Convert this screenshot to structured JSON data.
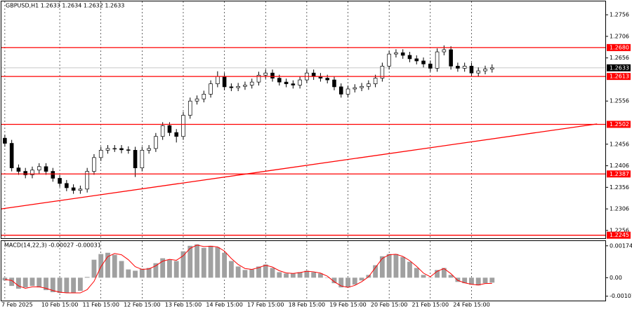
{
  "chart_data": [
    {
      "type": "candlestick",
      "title": "GBPUSD,H1  1.2633 1.2634 1.2632 1.2633",
      "x": [
        0,
        1,
        2,
        3,
        4,
        5,
        6,
        7,
        8,
        9,
        10,
        11,
        12,
        13,
        14,
        15,
        16,
        17,
        18,
        19,
        20,
        21,
        22,
        23,
        24,
        25,
        26,
        27,
        28,
        29,
        30,
        31,
        32,
        33,
        34,
        35,
        36,
        37,
        38,
        39,
        40,
        41,
        42,
        43,
        44,
        45,
        46,
        47,
        48,
        49,
        50,
        51,
        52,
        53,
        54,
        55,
        56,
        57,
        58,
        59,
        60,
        61,
        62,
        63,
        64,
        65,
        66,
        67,
        68,
        69,
        70,
        71
      ],
      "open": [
        1.247,
        1.2458,
        1.2401,
        1.2393,
        1.2385,
        1.2396,
        1.2404,
        1.2393,
        1.2377,
        1.2365,
        1.2355,
        1.2349,
        1.2352,
        1.2393,
        1.2425,
        1.2442,
        1.2446,
        1.2446,
        1.2443,
        1.2442,
        1.2401,
        1.2442,
        1.2446,
        1.2474,
        1.2499,
        1.2483,
        1.2474,
        1.2523,
        1.2556,
        1.2561,
        1.2572,
        1.2596,
        1.2613,
        1.2589,
        1.2587,
        1.259,
        1.2593,
        1.26,
        1.2616,
        1.2621,
        1.2609,
        1.26,
        1.2596,
        1.2593,
        1.2605,
        1.2621,
        1.2613,
        1.2609,
        1.2605,
        1.2589,
        1.2572,
        1.2584,
        1.2587,
        1.259,
        1.2596,
        1.2609,
        1.2637,
        1.2665,
        1.2668,
        1.2662,
        1.2654,
        1.2649,
        1.2642,
        1.2632,
        1.267,
        1.2675,
        1.2637,
        1.2632,
        1.2637,
        1.2621,
        1.2626,
        1.263
      ],
      "high": [
        1.2478,
        1.2466,
        1.2409,
        1.2401,
        1.2404,
        1.2412,
        1.2412,
        1.2401,
        1.2385,
        1.2373,
        1.2363,
        1.236,
        1.2401,
        1.2433,
        1.245,
        1.2454,
        1.2454,
        1.2454,
        1.2451,
        1.245,
        1.245,
        1.2454,
        1.2482,
        1.2507,
        1.2507,
        1.2491,
        1.2531,
        1.2564,
        1.2569,
        1.258,
        1.2604,
        1.2625,
        1.2621,
        1.2597,
        1.2598,
        1.2601,
        1.2608,
        1.2624,
        1.2629,
        1.2629,
        1.2617,
        1.2608,
        1.2604,
        1.2613,
        1.2629,
        1.2629,
        1.2621,
        1.2617,
        1.2613,
        1.2597,
        1.2592,
        1.2595,
        1.2598,
        1.2604,
        1.2617,
        1.2645,
        1.2673,
        1.2676,
        1.2676,
        1.267,
        1.2662,
        1.2657,
        1.265,
        1.2678,
        1.2685,
        1.2683,
        1.2645,
        1.2645,
        1.2645,
        1.2634,
        1.2638,
        1.2641
      ],
      "low": [
        1.245,
        1.2393,
        1.2385,
        1.2377,
        1.2377,
        1.2388,
        1.2385,
        1.2369,
        1.2357,
        1.2347,
        1.2341,
        1.2341,
        1.2344,
        1.2385,
        1.2417,
        1.2434,
        1.2438,
        1.2435,
        1.2434,
        1.238,
        1.2393,
        1.2434,
        1.2438,
        1.2466,
        1.2475,
        1.246,
        1.2466,
        1.2515,
        1.2548,
        1.2553,
        1.2564,
        1.2588,
        1.2581,
        1.2579,
        1.2579,
        1.2582,
        1.2585,
        1.2592,
        1.2608,
        1.2601,
        1.2592,
        1.2588,
        1.2585,
        1.2585,
        1.2597,
        1.2605,
        1.2601,
        1.2597,
        1.2581,
        1.2564,
        1.2564,
        1.2576,
        1.2579,
        1.2582,
        1.2588,
        1.2601,
        1.2629,
        1.2657,
        1.2654,
        1.2646,
        1.2641,
        1.2634,
        1.2624,
        1.2624,
        1.2662,
        1.2629,
        1.2624,
        1.2624,
        1.2613,
        1.2613,
        1.2618,
        1.2622
      ],
      "close": [
        1.2458,
        1.2401,
        1.2393,
        1.2385,
        1.2396,
        1.2404,
        1.2393,
        1.2377,
        1.2365,
        1.2355,
        1.2349,
        1.2352,
        1.2393,
        1.2425,
        1.2442,
        1.2446,
        1.2446,
        1.2443,
        1.2442,
        1.2401,
        1.2442,
        1.2446,
        1.2474,
        1.2499,
        1.2483,
        1.2474,
        1.2523,
        1.2556,
        1.2561,
        1.2572,
        1.2596,
        1.2613,
        1.2589,
        1.2587,
        1.259,
        1.2593,
        1.26,
        1.2616,
        1.2621,
        1.2609,
        1.26,
        1.2596,
        1.2593,
        1.2605,
        1.2621,
        1.2613,
        1.2609,
        1.2605,
        1.2589,
        1.2572,
        1.2584,
        1.2587,
        1.259,
        1.2596,
        1.2609,
        1.2637,
        1.2665,
        1.2668,
        1.2662,
        1.2654,
        1.2649,
        1.2642,
        1.2632,
        1.267,
        1.2675,
        1.2637,
        1.2632,
        1.2637,
        1.2621,
        1.2626,
        1.263,
        1.2633
      ],
      "up_color": "#ffffff",
      "down_color": "#000000",
      "wick_color": "#000000",
      "xlim": [
        -0.5,
        87.5
      ],
      "xticks": [
        {
          "value": 0,
          "label": "7 Feb 2025"
        },
        {
          "value": 8,
          "label": "10 Feb 15:00"
        },
        {
          "value": 14,
          "label": "11 Feb 15:00"
        },
        {
          "value": 20,
          "label": "12 Feb 15:00"
        },
        {
          "value": 26,
          "label": "13 Feb 15:00"
        },
        {
          "value": 32,
          "label": "14 Feb 15:00"
        },
        {
          "value": 38,
          "label": "17 Feb 15:00"
        },
        {
          "value": 44,
          "label": "18 Feb 15:00"
        },
        {
          "value": 50,
          "label": "19 Feb 15:00"
        },
        {
          "value": 56,
          "label": "20 Feb 15:00"
        },
        {
          "value": 62,
          "label": "21 Feb 15:00"
        },
        {
          "value": 68,
          "label": "24 Feb 15:00"
        }
      ],
      "grid_x": true,
      "ylim": [
        1.2238,
        1.2787
      ],
      "yticks": [
        1.2756,
        1.2706,
        1.2656,
        1.2556,
        1.2456,
        1.2406,
        1.2356,
        1.2306,
        1.2256
      ],
      "levels": [
        {
          "value": 1.268,
          "label": "1.2680"
        },
        {
          "value": 1.2613,
          "label": "1.2613"
        },
        {
          "value": 1.2502,
          "label": "1.2502"
        },
        {
          "value": 1.2387,
          "label": "1.2387"
        },
        {
          "value": 1.2245,
          "label": "1.2245"
        }
      ],
      "level_color": "#ff0000",
      "current_price": {
        "value": 1.2633,
        "label": "1.2633"
      },
      "trendline": {
        "x": [
          -0.5,
          86.3
        ],
        "y": [
          1.2306,
          1.2503
        ],
        "color": "#ff0000"
      }
    },
    {
      "type": "macd",
      "title": "MACD(14,22,3) -0.00027 -0.00031",
      "histogram": {
        "color": "#a0a0a0",
        "values": [
          -0.00015,
          -0.00045,
          -0.0006,
          -0.00053,
          -0.00045,
          -0.00053,
          -0.00068,
          -0.00079,
          -0.00083,
          -0.00083,
          -0.00083,
          -0.00072,
          4e-05,
          0.00098,
          0.00129,
          0.00136,
          0.00125,
          0.00091,
          0.00045,
          0.00038,
          0.00049,
          0.00053,
          0.00079,
          0.00106,
          0.00098,
          0.00091,
          0.00144,
          0.00174,
          0.00182,
          0.00163,
          0.00174,
          0.00166,
          0.00136,
          0.00091,
          0.00061,
          0.00042,
          0.00045,
          0.00061,
          0.00072,
          0.00053,
          0.0003,
          0.00023,
          0.00023,
          0.0003,
          0.00038,
          0.0003,
          0.00023,
          0.0,
          -0.0003,
          -0.00053,
          -0.00053,
          -0.00038,
          -0.00015,
          0.00015,
          0.00068,
          0.00117,
          0.00129,
          0.00129,
          0.00113,
          0.00087,
          0.00053,
          0.00015,
          0.0,
          0.00042,
          0.00053,
          0.00015,
          -0.00023,
          -0.0003,
          -0.00038,
          -0.00042,
          -0.0003,
          -0.00027
        ]
      },
      "signal": {
        "color": "#ff0000",
        "values": [
          -0.0001,
          -0.00015,
          -0.00045,
          -0.00058,
          -0.0005,
          -0.0005,
          -0.00058,
          -0.0007,
          -0.00079,
          -0.00083,
          -0.00083,
          -0.00083,
          -0.00065,
          -0.0002,
          0.0006,
          0.00115,
          0.00132,
          0.00125,
          0.00098,
          0.0006,
          0.00045,
          0.00048,
          0.00065,
          0.0009,
          0.001,
          0.00095,
          0.0012,
          0.0016,
          0.00178,
          0.0017,
          0.00172,
          0.00168,
          0.00145,
          0.00105,
          0.00072,
          0.0005,
          0.00045,
          0.00055,
          0.00068,
          0.00058,
          0.00038,
          0.00026,
          0.00023,
          0.00028,
          0.00035,
          0.00032,
          0.00025,
          8e-05,
          -0.00022,
          -0.00045,
          -0.00053,
          -0.00042,
          -0.00022,
          5e-05,
          0.00055,
          0.00105,
          0.00125,
          0.00128,
          0.00116,
          0.00093,
          0.00062,
          0.00025,
          5e-05,
          0.00035,
          0.0005,
          0.00022,
          -0.00015,
          -0.00028,
          -0.00036,
          -0.0004,
          -0.00032,
          -0.00031
        ]
      },
      "ylim": [
        -0.00125,
        0.002
      ],
      "yticks": [
        0.00174,
        {
          "value": 0,
          "label": "0.00"
        },
        -0.00101
      ]
    }
  ]
}
